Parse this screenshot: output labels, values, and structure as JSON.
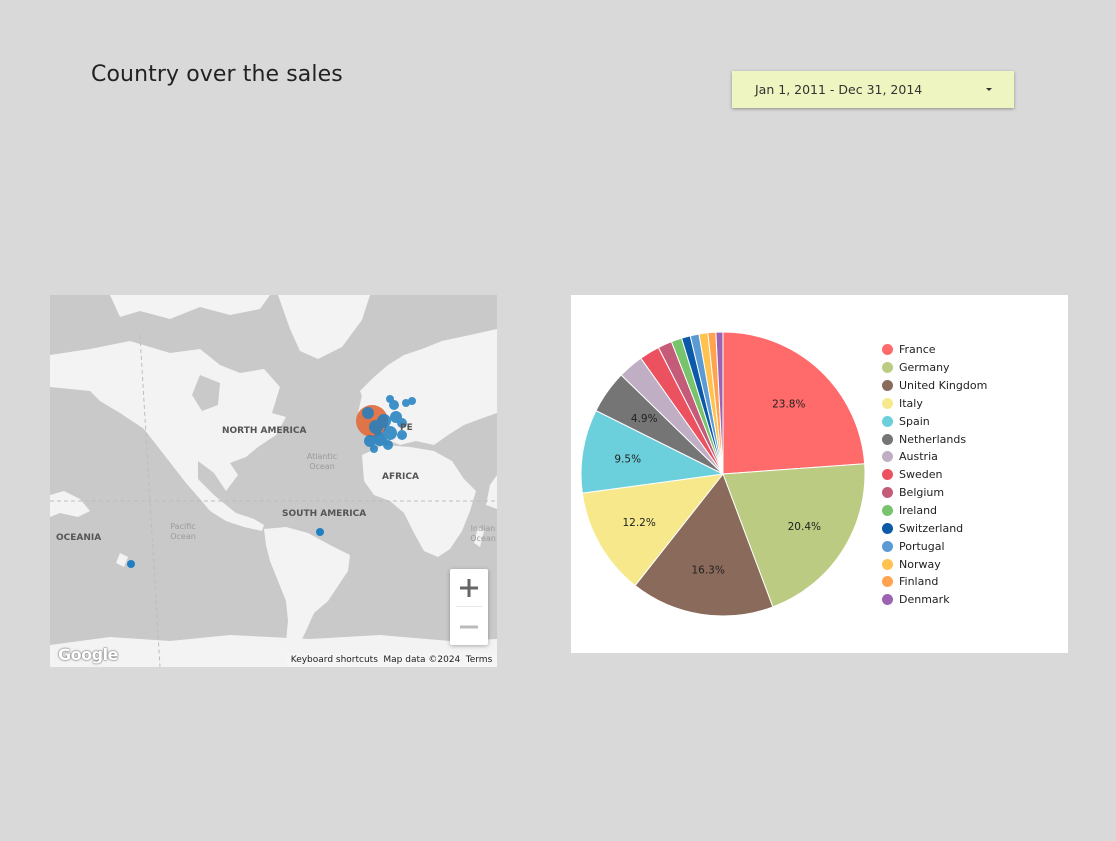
{
  "page": {
    "title": "Country over the sales"
  },
  "date_range": {
    "value": "Jan 1, 2011 - Dec 31, 2014",
    "icon": "chevron-down-icon"
  },
  "map": {
    "labels": {
      "north_america": "NORTH AMERICA",
      "south_america": "SOUTH AMERICA",
      "africa": "AFRICA",
      "oceania": "OCEANIA",
      "europe_fragment": "PE",
      "atlantic_ocean": "Atlantic Ocean",
      "pacific_ocean": "Pacific Ocean",
      "indian_ocean": "Indian Ocean"
    },
    "footer": {
      "shortcuts": "Keyboard shortcuts",
      "data": "Map data ©2024",
      "terms": "Terms"
    },
    "logo": "Google",
    "zoom_in_icon": "plus-icon",
    "zoom_out_icon": "minus-icon",
    "marker_colors": {
      "primary": "#1f7fc0",
      "highlight": "#e06a3a"
    }
  },
  "chart_data": {
    "type": "pie",
    "slices": [
      {
        "label": "France",
        "percent": 23.8,
        "color": "#ff6a6a"
      },
      {
        "label": "Germany",
        "percent": 20.4,
        "color": "#bccb82"
      },
      {
        "label": "United Kingdom",
        "percent": 16.3,
        "color": "#8a6a5a"
      },
      {
        "label": "Italy",
        "percent": 12.2,
        "color": "#f7e98b"
      },
      {
        "label": "Spain",
        "percent": 9.5,
        "color": "#6ccfdc"
      },
      {
        "label": "Netherlands",
        "percent": 4.9,
        "color": "#757575"
      },
      {
        "label": "Austria",
        "percent": 2.9,
        "color": "#c0aec5"
      },
      {
        "label": "Sweden",
        "percent": 2.3,
        "color": "#ec5160"
      },
      {
        "label": "Belgium",
        "percent": 1.6,
        "color": "#c45b78"
      },
      {
        "label": "Ireland",
        "percent": 1.2,
        "color": "#77c46d"
      },
      {
        "label": "Switzerland",
        "percent": 1.0,
        "color": "#0c59a8"
      },
      {
        "label": "Portugal",
        "percent": 1.0,
        "color": "#5b9bd5"
      },
      {
        "label": "Norway",
        "percent": 1.0,
        "color": "#ffc24f"
      },
      {
        "label": "Finland",
        "percent": 0.9,
        "color": "#ffa34f"
      },
      {
        "label": "Denmark",
        "percent": 0.8,
        "color": "#9b63b1"
      }
    ],
    "shown_labels": [
      "23.8%",
      "20.4%",
      "16.3%",
      "12.2%",
      "9.5%",
      "4.9%"
    ],
    "legend_position": "right"
  }
}
